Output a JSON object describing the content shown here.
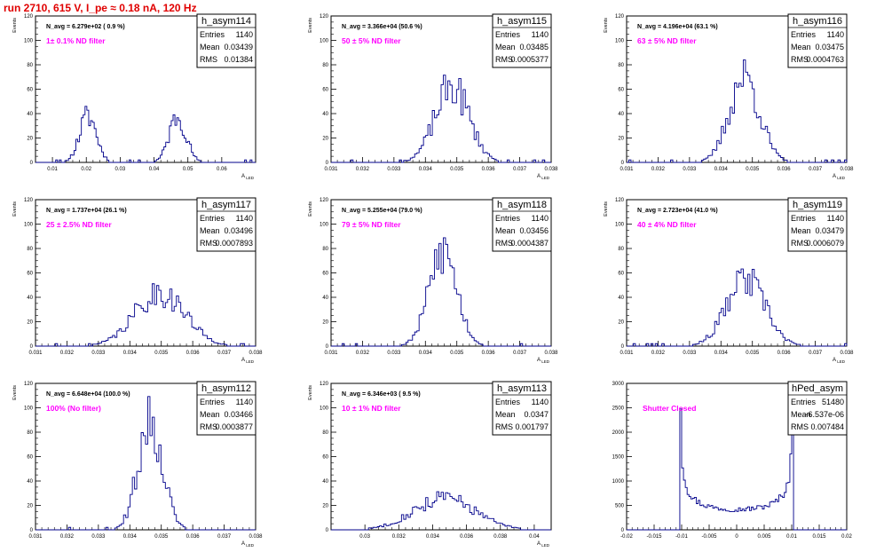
{
  "title": "run 2710,   615 V, I_pe ≈ 0.18 nA, 120 Hz",
  "chart_data": [
    {
      "type": "bar",
      "stats": {
        "name": "h_asym114",
        "entries": "1140",
        "mean": "0.03439",
        "rms": "0.01384"
      },
      "navg": "N_avg = 6.279e+02 ( 0.9 %)",
      "filter": "1± 0.1% ND filter",
      "ylabel": "Events",
      "xlabel": "A",
      "xlabel_sub": "LED",
      "xlim": [
        0.005,
        0.07
      ],
      "ylim": [
        0,
        120
      ],
      "xticks": [
        0.01,
        0.02,
        0.03,
        0.04,
        0.05,
        0.06
      ],
      "xtick_labels": [
        "0.01",
        "0.02",
        "0.03",
        "0.04",
        "0.05",
        "0.06"
      ],
      "yticks": [
        0,
        20,
        40,
        60,
        80,
        100,
        120
      ],
      "ytick_labels": [
        "0",
        "20",
        "40",
        "60",
        "80",
        "100",
        "120"
      ],
      "gaussians": [
        {
          "mu": 0.0205,
          "sigma": 0.0025,
          "amp": 38
        },
        {
          "mu": 0.047,
          "sigma": 0.0025,
          "amp": 38
        }
      ],
      "bins": 120,
      "seed": 11
    },
    {
      "type": "bar",
      "stats": {
        "name": "h_asym115",
        "entries": "1140",
        "mean": "0.03485",
        "rms": "0.0005377"
      },
      "navg": "N_avg = 3.366e+04 (50.6 %)",
      "filter": "50 ± 5% ND filter",
      "ylabel": "Events",
      "xlabel": "A",
      "xlabel_sub": "LED",
      "xlim": [
        0.031,
        0.038
      ],
      "ylim": [
        0,
        120
      ],
      "xticks": [
        0.031,
        0.032,
        0.033,
        0.034,
        0.035,
        0.036,
        0.037,
        0.038
      ],
      "xtick_labels": [
        "0.031",
        "0.032",
        "0.033",
        "0.034",
        "0.035",
        "0.036",
        "0.037",
        "0.038"
      ],
      "yticks": [
        0,
        20,
        40,
        60,
        80,
        100,
        120
      ],
      "ytick_labels": [
        "0",
        "20",
        "40",
        "60",
        "80",
        "100",
        "120"
      ],
      "gaussians": [
        {
          "mu": 0.03485,
          "sigma": 0.00054,
          "amp": 62
        }
      ],
      "bins": 100,
      "seed": 23
    },
    {
      "type": "bar",
      "stats": {
        "name": "h_asym116",
        "entries": "1140",
        "mean": "0.03475",
        "rms": "0.0004763"
      },
      "navg": "N_avg = 4.196e+04 (63.1 %)",
      "filter": "63 ± 5% ND filter",
      "ylabel": "Events",
      "xlabel": "A",
      "xlabel_sub": "LED",
      "xlim": [
        0.031,
        0.038
      ],
      "ylim": [
        0,
        120
      ],
      "xticks": [
        0.031,
        0.032,
        0.033,
        0.034,
        0.035,
        0.036,
        0.037,
        0.038
      ],
      "xtick_labels": [
        "0.031",
        "0.032",
        "0.033",
        "0.034",
        "0.035",
        "0.036",
        "0.037",
        "0.038"
      ],
      "yticks": [
        0,
        20,
        40,
        60,
        80,
        100,
        120
      ],
      "ytick_labels": [
        "0",
        "20",
        "40",
        "60",
        "80",
        "100",
        "120"
      ],
      "gaussians": [
        {
          "mu": 0.03475,
          "sigma": 0.00048,
          "amp": 70
        }
      ],
      "bins": 100,
      "seed": 37
    },
    {
      "type": "bar",
      "stats": {
        "name": "h_asym117",
        "entries": "1140",
        "mean": "0.03496",
        "rms": "0.0007893"
      },
      "navg": "N_avg = 1.737e+04 (26.1 %)",
      "filter": "25 ± 2.5% ND filter",
      "ylabel": "Events",
      "xlabel": "A",
      "xlabel_sub": "LED",
      "xlim": [
        0.031,
        0.038
      ],
      "ylim": [
        0,
        120
      ],
      "xticks": [
        0.031,
        0.032,
        0.033,
        0.034,
        0.035,
        0.036,
        0.037,
        0.038
      ],
      "xtick_labels": [
        "0.031",
        "0.032",
        "0.033",
        "0.034",
        "0.035",
        "0.036",
        "0.037",
        "0.038"
      ],
      "yticks": [
        0,
        20,
        40,
        60,
        80,
        100,
        120
      ],
      "ytick_labels": [
        "0",
        "20",
        "40",
        "60",
        "80",
        "100",
        "120"
      ],
      "gaussians": [
        {
          "mu": 0.03496,
          "sigma": 0.00079,
          "amp": 44
        }
      ],
      "bins": 100,
      "seed": 41
    },
    {
      "type": "bar",
      "stats": {
        "name": "h_asym118",
        "entries": "1140",
        "mean": "0.03456",
        "rms": "0.0004387"
      },
      "navg": "N_avg = 5.255e+04 (79.0 %)",
      "filter": "79 ± 5% ND filter",
      "ylabel": "Events",
      "xlabel": "A",
      "xlabel_sub": "LED",
      "xlim": [
        0.031,
        0.038
      ],
      "ylim": [
        0,
        120
      ],
      "xticks": [
        0.031,
        0.032,
        0.033,
        0.034,
        0.035,
        0.036,
        0.037,
        0.038
      ],
      "xtick_labels": [
        "0.031",
        "0.032",
        "0.033",
        "0.034",
        "0.035",
        "0.036",
        "0.037",
        "0.038"
      ],
      "yticks": [
        0,
        20,
        40,
        60,
        80,
        100,
        120
      ],
      "ytick_labels": [
        "0",
        "20",
        "40",
        "60",
        "80",
        "100",
        "120"
      ],
      "gaussians": [
        {
          "mu": 0.03456,
          "sigma": 0.00044,
          "amp": 78
        }
      ],
      "bins": 100,
      "seed": 53
    },
    {
      "type": "bar",
      "stats": {
        "name": "h_asym119",
        "entries": "1140",
        "mean": "0.03479",
        "rms": "0.0006079"
      },
      "navg": "N_avg = 2.723e+04 (41.0 %)",
      "filter": "40 ± 4% ND filter",
      "ylabel": "Events",
      "xlabel": "A",
      "xlabel_sub": "LED",
      "xlim": [
        0.031,
        0.038
      ],
      "ylim": [
        0,
        120
      ],
      "xticks": [
        0.031,
        0.032,
        0.033,
        0.034,
        0.035,
        0.036,
        0.037,
        0.038
      ],
      "xtick_labels": [
        "0.031",
        "0.032",
        "0.033",
        "0.034",
        "0.035",
        "0.036",
        "0.037",
        "0.038"
      ],
      "yticks": [
        0,
        20,
        40,
        60,
        80,
        100,
        120
      ],
      "ytick_labels": [
        "0",
        "20",
        "40",
        "60",
        "80",
        "100",
        "120"
      ],
      "gaussians": [
        {
          "mu": 0.03479,
          "sigma": 0.00061,
          "amp": 54
        }
      ],
      "bins": 100,
      "seed": 67
    },
    {
      "type": "bar",
      "stats": {
        "name": "h_asym112",
        "entries": "1140",
        "mean": "0.03466",
        "rms": "0.0003877"
      },
      "navg": "N_avg = 6.648e+04 (100.0 %)",
      "filter": "100% (No filter)",
      "ylabel": "Events",
      "xlabel": "A",
      "xlabel_sub": "LED",
      "xlim": [
        0.031,
        0.038
      ],
      "ylim": [
        0,
        120
      ],
      "xticks": [
        0.031,
        0.032,
        0.033,
        0.034,
        0.035,
        0.036,
        0.037,
        0.038
      ],
      "xtick_labels": [
        "0.031",
        "0.032",
        "0.033",
        "0.034",
        "0.035",
        "0.036",
        "0.037",
        "0.038"
      ],
      "yticks": [
        0,
        20,
        40,
        60,
        80,
        100,
        120
      ],
      "ytick_labels": [
        "0",
        "20",
        "40",
        "60",
        "80",
        "100",
        "120"
      ],
      "gaussians": [
        {
          "mu": 0.03466,
          "sigma": 0.00039,
          "amp": 90
        }
      ],
      "bins": 100,
      "seed": 71
    },
    {
      "type": "bar",
      "stats": {
        "name": "h_asym113",
        "entries": "1140",
        "mean": "0.0347",
        "rms": "0.001797"
      },
      "navg": "N_avg = 6.346e+03 ( 9.5 %)",
      "filter": "10 ± 1% ND filter",
      "ylabel": "Events",
      "xlabel": "A",
      "xlabel_sub": "LED",
      "xlim": [
        0.028,
        0.041
      ],
      "ylim": [
        0,
        120
      ],
      "xticks": [
        0.03,
        0.032,
        0.034,
        0.036,
        0.038,
        0.04
      ],
      "xtick_labels": [
        "0.03",
        "0.032",
        "0.034",
        "0.036",
        "0.038",
        "0.04"
      ],
      "yticks": [
        0,
        20,
        40,
        60,
        80,
        100,
        120
      ],
      "ytick_labels": [
        "0",
        "20",
        "40",
        "60",
        "80",
        "100",
        "120"
      ],
      "gaussians": [
        {
          "mu": 0.0347,
          "sigma": 0.0018,
          "amp": 26
        }
      ],
      "bins": 100,
      "seed": 83
    },
    {
      "type": "bar",
      "stats": {
        "name": "hPed_asym",
        "entries": "51480",
        "mean": "-6.537e-06",
        "rms": "0.007484"
      },
      "navg": "",
      "filter": "Shutter Closed",
      "ylabel": "",
      "xlabel": "",
      "xlabel_sub": "",
      "xlim": [
        -0.02,
        0.02
      ],
      "ylim": [
        0,
        3000
      ],
      "xticks": [
        -0.02,
        -0.015,
        -0.01,
        -0.005,
        0,
        0.005,
        0.01,
        0.015,
        0.02
      ],
      "xtick_labels": [
        "-0.02",
        "-0.015",
        "-0.01",
        "-0.005",
        "0",
        "0.005",
        "0.01",
        "0.015",
        "0.02"
      ],
      "yticks": [
        0,
        500,
        1000,
        1500,
        2000,
        2500,
        3000
      ],
      "ytick_labels": [
        "0",
        "500",
        "1000",
        "1500",
        "2000",
        "2500",
        "3000"
      ],
      "arcsine": {
        "low": -0.0103,
        "high": 0.0103,
        "peak": 2700,
        "floor": 420
      },
      "bins": 120,
      "seed": 97
    }
  ]
}
